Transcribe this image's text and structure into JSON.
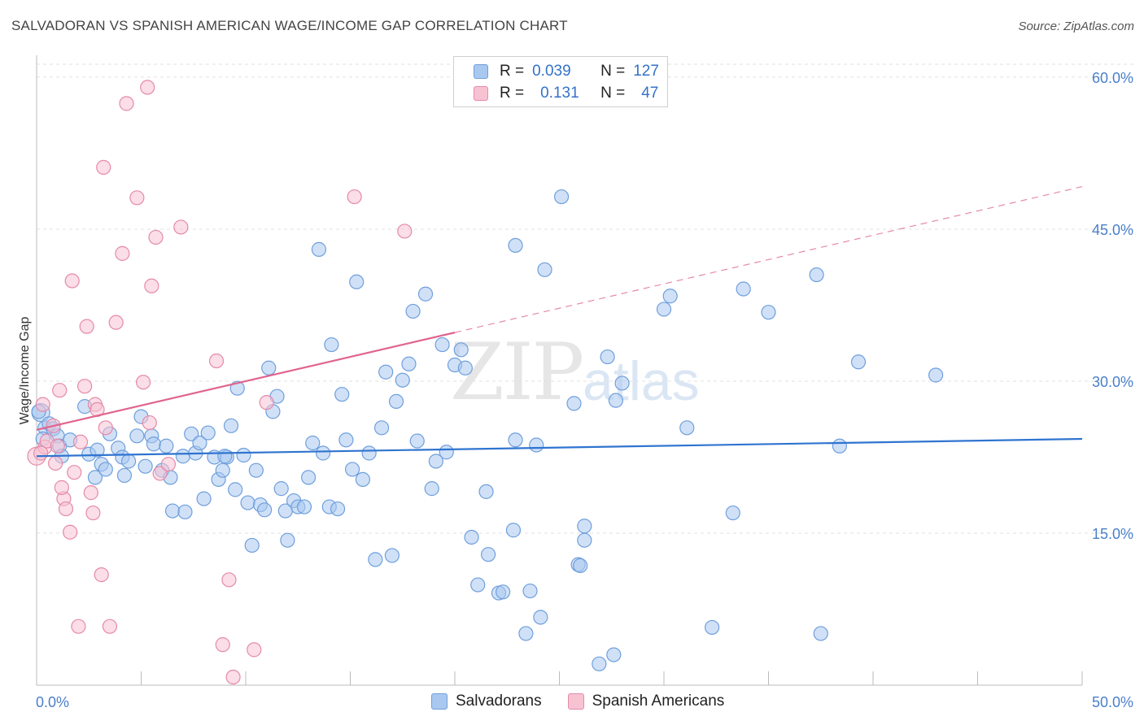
{
  "title": "SALVADORAN VS SPANISH AMERICAN WAGE/INCOME GAP CORRELATION CHART",
  "source": "Source: ZipAtlas.com",
  "watermark": {
    "zip": "ZIP",
    "atlas": "atlas"
  },
  "legend": {
    "r_label": "R =",
    "n_label": "N =",
    "rows": [
      {
        "r": "0.039",
        "n": "127",
        "color": "#a9c8f0",
        "border": "#6f9fdc"
      },
      {
        "r": "0.131",
        "n": "47",
        "color": "#f7c3d3",
        "border": "#e58aa8"
      }
    ]
  },
  "bottom_legend": [
    "Salvadorans",
    "Spanish Americans"
  ],
  "chart_data": {
    "type": "scatter",
    "title": "SALVADORAN VS SPANISH AMERICAN WAGE/INCOME GAP CORRELATION CHART",
    "xlabel": "",
    "ylabel": "Wage/Income Gap",
    "xlim": [
      0,
      50
    ],
    "ylim": [
      0,
      62
    ],
    "x_tick_labels": [
      "0.0%",
      "50.0%"
    ],
    "y_ticks": [
      15,
      30,
      45,
      60
    ],
    "y_tick_labels": [
      "15.0%",
      "30.0%",
      "45.0%",
      "60.0%"
    ],
    "grid": true,
    "legend_position": "top-center",
    "series": [
      {
        "name": "Salvadorans",
        "color": "#6f9fdc",
        "fill": "#a9c8f0",
        "trend": {
          "x": [
            0,
            50
          ],
          "y": [
            22.6,
            24.3
          ],
          "style": "solid",
          "color": "#2f74d0"
        },
        "points": [
          [
            0.2,
            26.9
          ],
          [
            0.4,
            25.4
          ],
          [
            0.6,
            25.8
          ],
          [
            0.8,
            25.3
          ],
          [
            1.0,
            24.6
          ],
          [
            1.1,
            23.6
          ],
          [
            1.2,
            22.6
          ],
          [
            1.6,
            24.2
          ],
          [
            2.3,
            27.5
          ],
          [
            2.5,
            22.8
          ],
          [
            2.8,
            20.5
          ],
          [
            2.9,
            23.2
          ],
          [
            3.1,
            21.8
          ],
          [
            3.3,
            21.3
          ],
          [
            3.5,
            24.8
          ],
          [
            3.9,
            23.4
          ],
          [
            4.1,
            22.5
          ],
          [
            4.2,
            20.7
          ],
          [
            4.4,
            22.1
          ],
          [
            4.8,
            24.6
          ],
          [
            5.0,
            26.5
          ],
          [
            5.2,
            21.6
          ],
          [
            5.5,
            24.6
          ],
          [
            5.6,
            23.8
          ],
          [
            6.0,
            21.2
          ],
          [
            6.2,
            23.6
          ],
          [
            6.4,
            20.5
          ],
          [
            6.5,
            17.2
          ],
          [
            7.0,
            22.6
          ],
          [
            7.1,
            17.1
          ],
          [
            7.4,
            24.8
          ],
          [
            7.6,
            22.9
          ],
          [
            7.8,
            23.9
          ],
          [
            8.0,
            18.4
          ],
          [
            8.2,
            24.9
          ],
          [
            8.5,
            22.5
          ],
          [
            8.7,
            20.3
          ],
          [
            8.9,
            21.2
          ],
          [
            9.1,
            22.5
          ],
          [
            9.3,
            25.6
          ],
          [
            9.5,
            19.3
          ],
          [
            9.6,
            29.3
          ],
          [
            9.9,
            22.7
          ],
          [
            10.1,
            18.0
          ],
          [
            10.3,
            13.8
          ],
          [
            10.5,
            21.2
          ],
          [
            10.7,
            17.8
          ],
          [
            10.9,
            17.3
          ],
          [
            11.1,
            31.3
          ],
          [
            11.3,
            27.0
          ],
          [
            11.5,
            28.5
          ],
          [
            11.7,
            19.4
          ],
          [
            11.9,
            17.2
          ],
          [
            12.0,
            14.3
          ],
          [
            12.3,
            18.2
          ],
          [
            12.5,
            17.6
          ],
          [
            12.8,
            17.6
          ],
          [
            13.0,
            20.5
          ],
          [
            13.2,
            23.9
          ],
          [
            13.5,
            43.0
          ],
          [
            13.7,
            22.9
          ],
          [
            14.0,
            17.6
          ],
          [
            14.1,
            33.6
          ],
          [
            14.4,
            17.4
          ],
          [
            14.6,
            28.7
          ],
          [
            14.8,
            24.2
          ],
          [
            15.1,
            21.3
          ],
          [
            15.3,
            39.8
          ],
          [
            15.6,
            20.3
          ],
          [
            15.9,
            22.9
          ],
          [
            16.2,
            12.4
          ],
          [
            16.5,
            25.4
          ],
          [
            16.7,
            30.9
          ],
          [
            17.0,
            12.8
          ],
          [
            17.2,
            28.0
          ],
          [
            17.5,
            30.1
          ],
          [
            17.8,
            31.7
          ],
          [
            18.0,
            36.9
          ],
          [
            18.2,
            24.1
          ],
          [
            18.6,
            38.6
          ],
          [
            18.9,
            19.4
          ],
          [
            19.1,
            22.1
          ],
          [
            19.4,
            33.6
          ],
          [
            19.6,
            23.0
          ],
          [
            20.0,
            31.6
          ],
          [
            20.3,
            33.1
          ],
          [
            20.5,
            31.3
          ],
          [
            20.8,
            14.6
          ],
          [
            21.1,
            9.9
          ],
          [
            21.5,
            19.1
          ],
          [
            21.6,
            12.9
          ],
          [
            22.1,
            9.1
          ],
          [
            22.3,
            9.2
          ],
          [
            22.8,
            15.3
          ],
          [
            22.9,
            24.2
          ],
          [
            22.9,
            43.4
          ],
          [
            23.4,
            5.1
          ],
          [
            23.6,
            9.3
          ],
          [
            23.9,
            23.7
          ],
          [
            24.1,
            6.7
          ],
          [
            24.3,
            41.0
          ],
          [
            25.1,
            48.2
          ],
          [
            25.7,
            27.8
          ],
          [
            25.9,
            11.9
          ],
          [
            26.0,
            11.8
          ],
          [
            26.2,
            15.7
          ],
          [
            26.2,
            14.3
          ],
          [
            26.9,
            2.1
          ],
          [
            27.3,
            32.4
          ],
          [
            27.6,
            3.0
          ],
          [
            27.7,
            28.1
          ],
          [
            28.0,
            29.8
          ],
          [
            30.0,
            37.1
          ],
          [
            30.3,
            38.4
          ],
          [
            31.1,
            25.4
          ],
          [
            32.3,
            5.7
          ],
          [
            33.3,
            17.0
          ],
          [
            33.8,
            39.1
          ],
          [
            35.0,
            36.8
          ],
          [
            37.3,
            40.5
          ],
          [
            37.5,
            5.1
          ],
          [
            38.4,
            23.6
          ],
          [
            39.3,
            31.9
          ],
          [
            43.0,
            30.6
          ],
          [
            0.1,
            27.0
          ],
          [
            0.3,
            24.3
          ],
          [
            9.0,
            22.6
          ]
        ]
      },
      {
        "name": "Spanish Americans",
        "color": "#e58aa8",
        "fill": "#f7c3d3",
        "trend": {
          "x": [
            0,
            20
          ],
          "y": [
            25.2,
            34.8
          ],
          "style": "solid",
          "color": "#e0648f"
        },
        "trend_extension": {
          "x": [
            20,
            50
          ],
          "y": [
            34.8,
            49.2
          ],
          "style": "dashed"
        },
        "points": [
          [
            0.0,
            22.6
          ],
          [
            0.3,
            27.7
          ],
          [
            0.4,
            23.5
          ],
          [
            0.5,
            24.1
          ],
          [
            0.8,
            25.6
          ],
          [
            0.9,
            21.9
          ],
          [
            1.0,
            23.6
          ],
          [
            1.1,
            29.1
          ],
          [
            1.3,
            18.4
          ],
          [
            1.4,
            17.4
          ],
          [
            1.6,
            15.1
          ],
          [
            1.7,
            39.9
          ],
          [
            1.8,
            21.0
          ],
          [
            2.0,
            5.8
          ],
          [
            2.1,
            24.0
          ],
          [
            2.3,
            29.5
          ],
          [
            2.4,
            35.4
          ],
          [
            2.6,
            19.0
          ],
          [
            2.7,
            17.0
          ],
          [
            2.8,
            27.7
          ],
          [
            2.9,
            27.2
          ],
          [
            3.1,
            10.9
          ],
          [
            3.2,
            51.1
          ],
          [
            3.3,
            25.4
          ],
          [
            3.5,
            5.8
          ],
          [
            3.8,
            35.8
          ],
          [
            4.1,
            42.6
          ],
          [
            4.3,
            57.4
          ],
          [
            4.8,
            48.1
          ],
          [
            5.1,
            29.9
          ],
          [
            5.3,
            59.0
          ],
          [
            5.4,
            25.9
          ],
          [
            5.5,
            39.4
          ],
          [
            5.7,
            44.2
          ],
          [
            5.9,
            20.9
          ],
          [
            6.3,
            21.8
          ],
          [
            6.9,
            45.2
          ],
          [
            8.6,
            32.0
          ],
          [
            8.9,
            4.0
          ],
          [
            9.2,
            10.4
          ],
          [
            9.4,
            0.8
          ],
          [
            10.4,
            3.5
          ],
          [
            11.0,
            27.9
          ],
          [
            15.2,
            48.2
          ],
          [
            17.6,
            44.8
          ],
          [
            0.2,
            22.9
          ],
          [
            1.2,
            19.5
          ]
        ]
      }
    ]
  }
}
